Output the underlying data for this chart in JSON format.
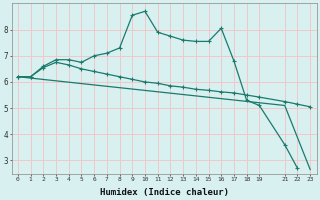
{
  "xlabel": "Humidex (Indice chaleur)",
  "background_color": "#d8f0f0",
  "grid_color": "#f0c8c8",
  "line_color": "#1a7a6e",
  "xlim": [
    -0.5,
    23.5
  ],
  "ylim": [
    2.5,
    9.0
  ],
  "xticks": [
    0,
    1,
    2,
    3,
    4,
    5,
    6,
    7,
    8,
    9,
    10,
    11,
    12,
    13,
    14,
    15,
    16,
    17,
    18,
    19,
    21,
    22,
    23
  ],
  "yticks": [
    3,
    4,
    5,
    6,
    7,
    8
  ],
  "line1_x": [
    0,
    1,
    2,
    3,
    4,
    5,
    6,
    7,
    8,
    9,
    10,
    11,
    12,
    13,
    14,
    15,
    16,
    17,
    18,
    19,
    21,
    22
  ],
  "line1_y": [
    6.2,
    6.2,
    6.6,
    6.85,
    6.85,
    6.75,
    7.0,
    7.1,
    7.3,
    8.55,
    8.7,
    7.9,
    7.75,
    7.6,
    7.55,
    7.55,
    8.05,
    6.8,
    5.3,
    5.1,
    3.6,
    2.7
  ],
  "line2_x": [
    0,
    1,
    2,
    3,
    4,
    5,
    6,
    7,
    8,
    9,
    10,
    11,
    12,
    13,
    14,
    15,
    16,
    17,
    18,
    19,
    21,
    22,
    23
  ],
  "line2_y": [
    6.2,
    6.2,
    6.55,
    6.75,
    6.65,
    6.5,
    6.4,
    6.3,
    6.2,
    6.1,
    6.0,
    5.95,
    5.85,
    5.8,
    5.72,
    5.68,
    5.62,
    5.58,
    5.5,
    5.42,
    5.25,
    5.15,
    5.05
  ],
  "line3_x": [
    0,
    21,
    23
  ],
  "line3_y": [
    6.2,
    5.1,
    2.65
  ]
}
